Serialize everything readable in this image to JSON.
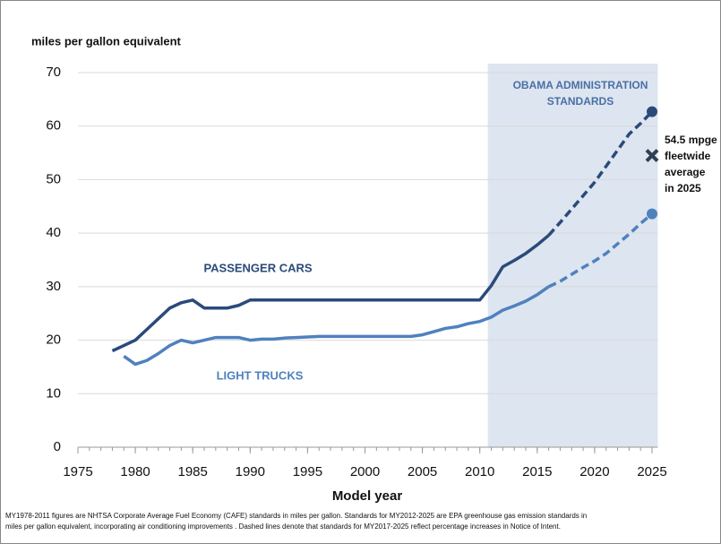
{
  "chart_data": {
    "type": "line",
    "y_axis_label": "miles per gallon equivalent",
    "x_axis_label": "Model year",
    "footnote": [
      "MY1978-2011 figures are NHTSA Corporate Average Fuel Economy (CAFE) standards in miles per gallon.  Standards for MY2012-2025 are EPA greenhouse gas emission standards in",
      "miles per gallon equivalent, incorporating air conditioning improvements .  Dashed lines denote that standards for MY2017-2025 reflect percentage increases in Notice of Intent."
    ],
    "x": [
      1978,
      1979,
      1980,
      1981,
      1982,
      1983,
      1984,
      1985,
      1986,
      1987,
      1988,
      1989,
      1990,
      1991,
      1992,
      1993,
      1994,
      1995,
      1996,
      1997,
      1998,
      1999,
      2000,
      2001,
      2002,
      2003,
      2004,
      2005,
      2006,
      2007,
      2008,
      2009,
      2010,
      2011,
      2012,
      2013,
      2014,
      2015,
      2016,
      2017,
      2018,
      2019,
      2020,
      2021,
      2022,
      2023,
      2024,
      2025
    ],
    "series": [
      {
        "name": "PASSENGER CARS",
        "color": "#2a4a7a",
        "dash_from_x": 2016,
        "end_marker": true,
        "values": [
          18,
          19,
          20,
          22,
          24,
          26,
          27,
          27.5,
          26,
          26,
          26,
          26.5,
          27.5,
          27.5,
          27.5,
          27.5,
          27.5,
          27.5,
          27.5,
          27.5,
          27.5,
          27.5,
          27.5,
          27.5,
          27.5,
          27.5,
          27.5,
          27.5,
          27.5,
          27.5,
          27.5,
          27.5,
          27.5,
          30.2,
          33.7,
          34.9,
          36.2,
          37.8,
          39.6,
          42,
          44.5,
          47,
          49.5,
          52.5,
          55.5,
          58.5,
          60.5,
          62.7
        ]
      },
      {
        "name": "LIGHT TRUCKS",
        "color": "#4f81bd",
        "dash_from_x": 2016,
        "end_marker": true,
        "values": [
          null,
          17,
          15.5,
          16.2,
          17.5,
          19,
          20,
          19.5,
          20,
          20.5,
          20.5,
          20.5,
          20,
          20.2,
          20.2,
          20.4,
          20.5,
          20.6,
          20.7,
          20.7,
          20.7,
          20.7,
          20.7,
          20.7,
          20.7,
          20.7,
          20.7,
          21,
          21.6,
          22.2,
          22.5,
          23.1,
          23.5,
          24.3,
          25.6,
          26.4,
          27.3,
          28.5,
          30,
          31,
          32.3,
          33.6,
          34.8,
          36.2,
          38,
          39.8,
          41.8,
          43.6
        ]
      }
    ],
    "xlim": [
      1975,
      2025
    ],
    "xticks": [
      1975,
      1980,
      1985,
      1990,
      1995,
      2000,
      2005,
      2010,
      2015,
      2020,
      2025
    ],
    "xminor_step": 1,
    "ylim": [
      0,
      70
    ],
    "yticks": [
      0,
      10,
      20,
      30,
      40,
      50,
      60,
      70
    ],
    "grid": true,
    "shaded_region": {
      "x": [
        2010.7,
        2025.5
      ],
      "color": "#dde5f0",
      "label": [
        "OBAMA  ADMINISTRATION",
        "STANDARDS"
      ]
    },
    "fleet_marker": {
      "x": 2025,
      "y": 54.5,
      "color": "#2f3f55",
      "label": [
        "54.5 mpge",
        "fleetwide",
        "average",
        "in 2025"
      ]
    }
  }
}
